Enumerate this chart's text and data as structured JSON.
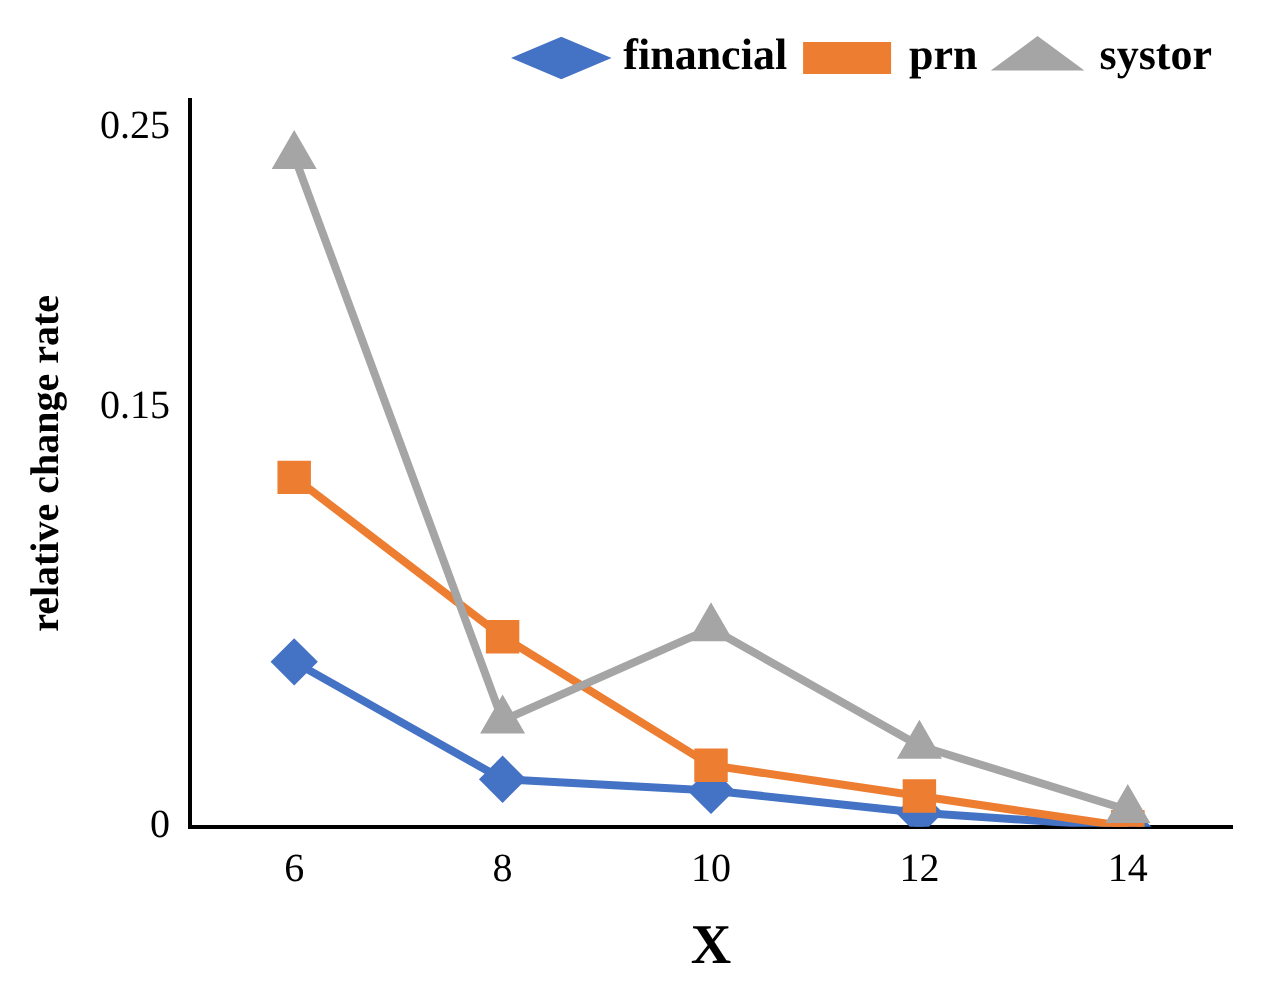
{
  "chart_data": {
    "type": "line",
    "xlabel": "X",
    "ylabel": "relative change rate",
    "categories": [
      "6",
      "8",
      "10",
      "12",
      "14"
    ],
    "ylim": [
      0,
      0.26
    ],
    "yticks": [
      0,
      0.15,
      0.25
    ],
    "grid": false,
    "legend": "top",
    "series": [
      {
        "name": "financial",
        "color": "#4472c4",
        "marker": "diamond",
        "values": [
          0.059,
          0.017,
          0.013,
          0.005,
          0
        ]
      },
      {
        "name": "prn",
        "color": "#ed7d31",
        "marker": "square",
        "values": [
          0.125,
          0.068,
          0.022,
          0.011,
          0
        ]
      },
      {
        "name": "systor",
        "color": "#a5a5a5",
        "marker": "triangle",
        "values": [
          0.24,
          0.038,
          0.071,
          0.029,
          0.006
        ]
      }
    ]
  }
}
